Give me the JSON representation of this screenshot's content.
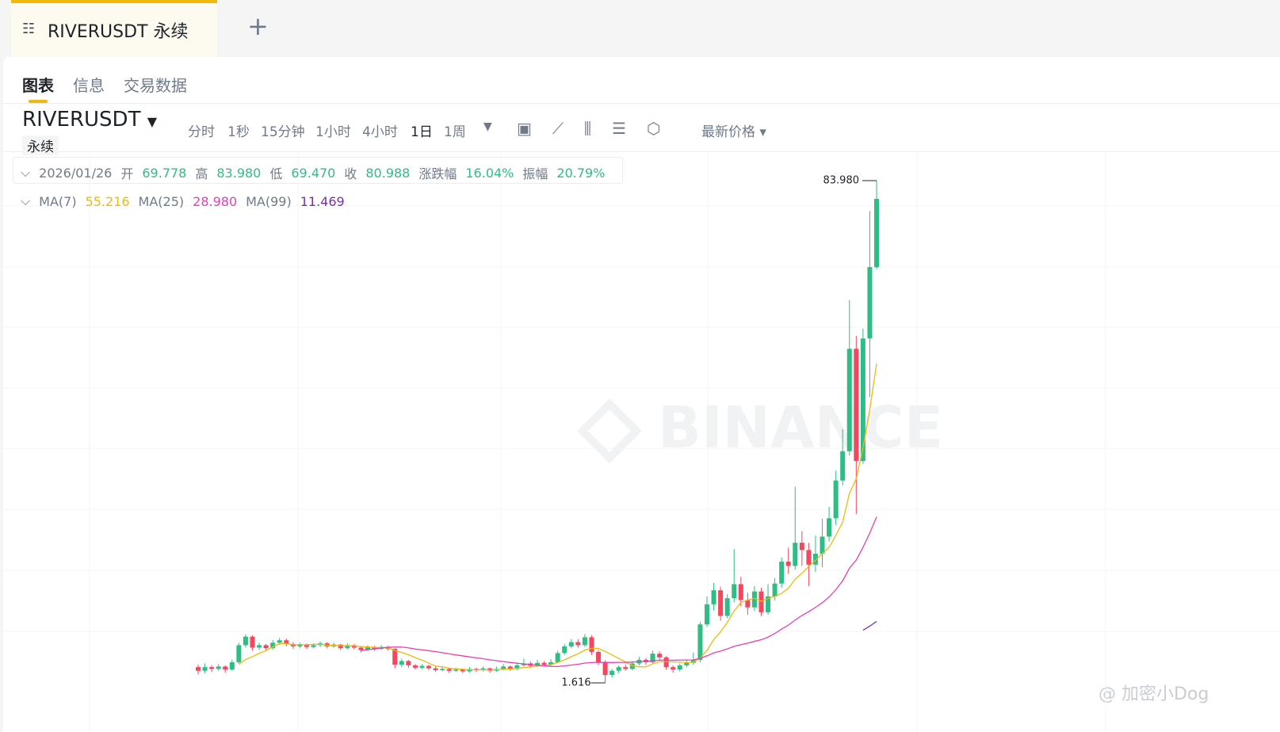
{
  "tab": {
    "title": "RIVERUSDT 永续"
  },
  "subnav": [
    "图表",
    "信息",
    "交易数据"
  ],
  "toolbar": {
    "symbol": "RIVERUSDT",
    "contract": "永续",
    "intervals": [
      "分时",
      "1秒",
      "15分钟",
      "1小时",
      "4小时",
      "1日",
      "1周"
    ],
    "active_interval": 5,
    "price_type": "最新价格"
  },
  "chart_data": {
    "type": "candlestick",
    "date": "2026/01/26",
    "readout": [
      {
        "name": "开",
        "value": 69.778
      },
      {
        "name": "高",
        "value": 83.98,
        "label": "83.980"
      },
      {
        "name": "低",
        "value": 69.47,
        "label": "69.470"
      },
      {
        "name": "收",
        "value": 80.988
      },
      {
        "name": "涨跌幅",
        "value": 16.04,
        "label": "16.04%"
      },
      {
        "name": "振幅",
        "value": 20.79,
        "label": "20.79%"
      }
    ],
    "ma": [
      {
        "name": "MA(7)",
        "value": 55.216,
        "color": "#f0b90b",
        "period": 7
      },
      {
        "name": "MA(25)",
        "value": 28.98,
        "label": "28.980",
        "color": "#e83fb3",
        "period": 25
      },
      {
        "name": "MA(99)",
        "value": 11.469,
        "color": "#7a2ea8",
        "period": 99
      }
    ],
    "up_color": "#2ebd85",
    "down_color": "#f6465d",
    "open": [
      4.2,
      3.6,
      4.2,
      3.9,
      4.3,
      3.8,
      5.0,
      7.8,
      9.2,
      7.4,
      7.8,
      7.3,
      8.2,
      8.6,
      8.0,
      7.6,
      7.9,
      7.5,
      7.8,
      8.1,
      7.6,
      7.9,
      7.3,
      7.8,
      7.4,
      7.0,
      7.5,
      7.2,
      7.5,
      7.2,
      4.6,
      5.2,
      4.5,
      4.1,
      4.4,
      4.0,
      3.7,
      3.9,
      3.6,
      3.8,
      3.5,
      3.9,
      3.7,
      4.0,
      3.6,
      3.9,
      4.3,
      3.9,
      4.5,
      4.8,
      4.4,
      4.9,
      4.6,
      5.0,
      6.5,
      7.6,
      8.3,
      7.8,
      9.1,
      6.7,
      5.0,
      2.9,
      3.6,
      4.2,
      3.9,
      4.8,
      5.4,
      5.0,
      6.4,
      5.8,
      4.2,
      3.8,
      4.5,
      4.9,
      5.4,
      11.2,
      14.5,
      16.8,
      12.6,
      15.5,
      17.8,
      15.2,
      14.0,
      16.6,
      13.2,
      15.8,
      17.9,
      21.5,
      20.8,
      24.6,
      23.4,
      21.0,
      22.8,
      25.6,
      28.6,
      34.8,
      39.6,
      56.4,
      38.0,
      58.1,
      69.778
    ],
    "high": [
      4.6,
      4.8,
      4.5,
      4.7,
      4.5,
      5.4,
      8.2,
      9.6,
      9.4,
      8.2,
      8.0,
      8.6,
      9.0,
      8.9,
      8.3,
      8.2,
      8.1,
      8.1,
      8.4,
      8.3,
      8.2,
      8.0,
      8.1,
      8.0,
      7.6,
      7.8,
      7.7,
      7.8,
      7.7,
      7.3,
      5.6,
      5.4,
      4.7,
      4.7,
      4.6,
      4.3,
      4.2,
      4.1,
      4.1,
      4.0,
      4.2,
      4.1,
      4.3,
      4.1,
      4.3,
      4.7,
      4.5,
      5.0,
      5.6,
      5.1,
      5.4,
      5.2,
      5.5,
      6.9,
      8.0,
      8.8,
      8.8,
      9.6,
      9.4,
      7.0,
      5.3,
      3.9,
      4.5,
      4.6,
      5.2,
      5.9,
      5.7,
      6.9,
      6.8,
      6.0,
      4.5,
      4.8,
      5.3,
      6.6,
      11.6,
      15.8,
      18.0,
      17.4,
      16.2,
      23.6,
      19.0,
      16.4,
      17.5,
      17.2,
      17.8,
      18.8,
      22.2,
      23.8,
      33.8,
      26.5,
      24.6,
      25.8,
      28.5,
      30.5,
      36.4,
      43.2,
      64.4,
      58.5,
      59.7,
      79.0,
      83.98
    ],
    "low": [
      3.0,
      3.2,
      3.4,
      3.6,
      3.3,
      3.6,
      4.8,
      7.4,
      6.9,
      7.0,
      6.9,
      7.1,
      7.9,
      7.6,
      7.2,
      7.3,
      7.2,
      7.3,
      7.5,
      7.3,
      7.4,
      7.0,
      7.1,
      7.1,
      6.6,
      6.8,
      6.9,
      7.0,
      6.9,
      4.0,
      4.2,
      4.1,
      3.8,
      3.9,
      3.7,
      3.4,
      3.5,
      3.3,
      3.4,
      3.2,
      3.3,
      3.4,
      3.5,
      3.3,
      3.4,
      3.7,
      3.6,
      3.7,
      4.3,
      4.1,
      4.2,
      4.3,
      4.4,
      4.8,
      6.2,
      7.3,
      7.4,
      7.5,
      6.2,
      4.5,
      1.616,
      2.5,
      3.2,
      3.6,
      3.7,
      4.5,
      4.6,
      4.8,
      5.4,
      3.8,
      3.3,
      3.5,
      4.2,
      4.6,
      5.0,
      10.8,
      13.5,
      11.8,
      12.2,
      14.8,
      14.2,
      12.8,
      13.4,
      12.6,
      12.8,
      15.1,
      17.2,
      19.5,
      20.2,
      20.8,
      17.5,
      19.8,
      20.6,
      24.8,
      27.5,
      34.0,
      38.9,
      29.3,
      37.5,
      48.5,
      69.47
    ],
    "close": [
      3.6,
      4.2,
      3.9,
      4.3,
      3.8,
      5.0,
      7.8,
      9.2,
      7.4,
      7.8,
      7.3,
      8.2,
      8.6,
      8.0,
      7.6,
      7.9,
      7.5,
      7.8,
      8.1,
      7.6,
      7.9,
      7.3,
      7.8,
      7.4,
      7.0,
      7.5,
      7.2,
      7.5,
      7.2,
      4.6,
      5.2,
      4.5,
      4.1,
      4.4,
      4.0,
      3.7,
      3.9,
      3.6,
      3.8,
      3.5,
      3.9,
      3.7,
      4.0,
      3.6,
      3.9,
      4.3,
      3.9,
      4.5,
      4.8,
      4.4,
      4.9,
      4.6,
      5.0,
      6.5,
      7.6,
      8.3,
      7.8,
      9.1,
      6.7,
      5.0,
      2.9,
      3.6,
      4.2,
      3.9,
      4.8,
      5.4,
      5.0,
      6.4,
      5.8,
      4.2,
      3.8,
      4.5,
      4.9,
      5.4,
      11.2,
      14.5,
      16.8,
      12.6,
      15.5,
      17.8,
      15.2,
      14.0,
      16.6,
      13.2,
      15.8,
      17.9,
      21.5,
      20.8,
      24.6,
      23.4,
      21.0,
      22.8,
      25.6,
      28.6,
      34.8,
      39.6,
      56.4,
      38.0,
      58.1,
      69.8,
      80.988
    ],
    "high_marker": {
      "value": 83.98,
      "label": "83.980"
    },
    "low_marker": {
      "value": 1.616,
      "label": "1.616"
    },
    "watermark": "BINANCE"
  },
  "credit": "@ 加密小Dog"
}
